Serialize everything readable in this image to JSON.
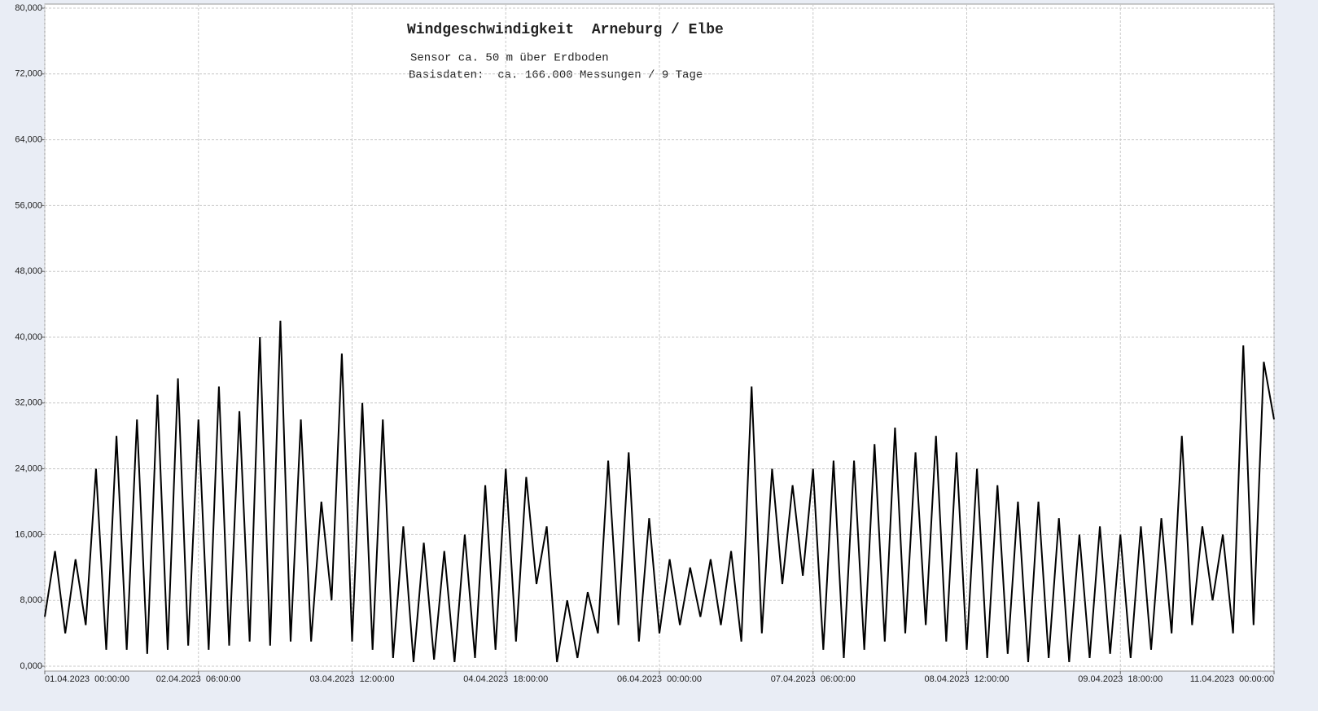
{
  "chart_data": {
    "type": "line",
    "title": "Windgeschwindigkeit  Arneburg / Elbe",
    "subtitle": "Sensor ca. 50 m über Erdboden",
    "annotation": "Basisdaten:  ca. 166.000 Messungen / 9 Tage",
    "color": "#000000",
    "grid": true,
    "xlim": [
      0,
      240
    ],
    "xticks": [
      {
        "value": 0,
        "label": "01.04.2023  00:00:00"
      },
      {
        "value": 30,
        "label": "02.04.2023  06:00:00"
      },
      {
        "value": 60,
        "label": "03.04.2023  12:00:00"
      },
      {
        "value": 90,
        "label": "04.04.2023  18:00:00"
      },
      {
        "value": 120,
        "label": "06.04.2023  00:00:00"
      },
      {
        "value": 150,
        "label": "07.04.2023  06:00:00"
      },
      {
        "value": 180,
        "label": "08.04.2023  12:00:00"
      },
      {
        "value": 210,
        "label": "09.04.2023  18:00:00"
      },
      {
        "value": 240,
        "label": "11.04.2023  00:00:00"
      }
    ],
    "ylim": [
      0,
      80000
    ],
    "yticks": [
      {
        "value": 0,
        "label": "0,000"
      },
      {
        "value": 8000,
        "label": "8,000"
      },
      {
        "value": 16000,
        "label": "16,000"
      },
      {
        "value": 24000,
        "label": "24,000"
      },
      {
        "value": 32000,
        "label": "32,000"
      },
      {
        "value": 40000,
        "label": "40,000"
      },
      {
        "value": 48000,
        "label": "48,000"
      },
      {
        "value": 56000,
        "label": "56,000"
      },
      {
        "value": 64000,
        "label": "64,000"
      },
      {
        "value": 72000,
        "label": "72,000"
      },
      {
        "value": 80000,
        "label": "80,000"
      }
    ],
    "x": [
      0,
      2,
      4,
      6,
      8,
      10,
      12,
      14,
      16,
      18,
      20,
      22,
      24,
      26,
      28,
      30,
      32,
      34,
      36,
      38,
      40,
      42,
      44,
      46,
      48,
      50,
      52,
      54,
      56,
      58,
      60,
      62,
      64,
      66,
      68,
      70,
      72,
      74,
      76,
      78,
      80,
      82,
      84,
      86,
      88,
      90,
      92,
      94,
      96,
      98,
      100,
      102,
      104,
      106,
      108,
      110,
      112,
      114,
      116,
      118,
      120,
      122,
      124,
      126,
      128,
      130,
      132,
      134,
      136,
      138,
      140,
      142,
      144,
      146,
      148,
      150,
      152,
      154,
      156,
      158,
      160,
      162,
      164,
      166,
      168,
      170,
      172,
      174,
      176,
      178,
      180,
      182,
      184,
      186,
      188,
      190,
      192,
      194,
      196,
      198,
      200,
      202,
      204,
      206,
      208,
      210,
      212,
      214,
      216,
      218,
      220,
      222,
      224,
      226,
      228,
      230,
      232,
      234,
      236,
      238,
      240
    ],
    "values": [
      6000,
      14000,
      4000,
      13000,
      5000,
      24000,
      2000,
      28000,
      2000,
      30000,
      1500,
      33000,
      2000,
      35000,
      2500,
      30000,
      2000,
      34000,
      2500,
      31000,
      3000,
      40000,
      2500,
      42000,
      3000,
      30000,
      3000,
      20000,
      8000,
      38000,
      3000,
      32000,
      2000,
      30000,
      1000,
      17000,
      500,
      15000,
      800,
      14000,
      500,
      16000,
      1000,
      22000,
      2000,
      24000,
      3000,
      23000,
      10000,
      17000,
      500,
      8000,
      1000,
      9000,
      4000,
      25000,
      5000,
      26000,
      3000,
      18000,
      4000,
      13000,
      5000,
      12000,
      6000,
      13000,
      5000,
      14000,
      3000,
      34000,
      4000,
      24000,
      10000,
      22000,
      11000,
      24000,
      2000,
      25000,
      1000,
      25000,
      2000,
      27000,
      3000,
      29000,
      4000,
      26000,
      5000,
      28000,
      3000,
      26000,
      2000,
      24000,
      1000,
      22000,
      1500,
      20000,
      500,
      20000,
      1000,
      18000,
      500,
      16000,
      1000,
      17000,
      1500,
      16000,
      1000,
      17000,
      2000,
      18000,
      4000,
      28000,
      5000,
      17000,
      8000,
      16000,
      4000,
      39000,
      5000,
      37000,
      30000
    ]
  }
}
